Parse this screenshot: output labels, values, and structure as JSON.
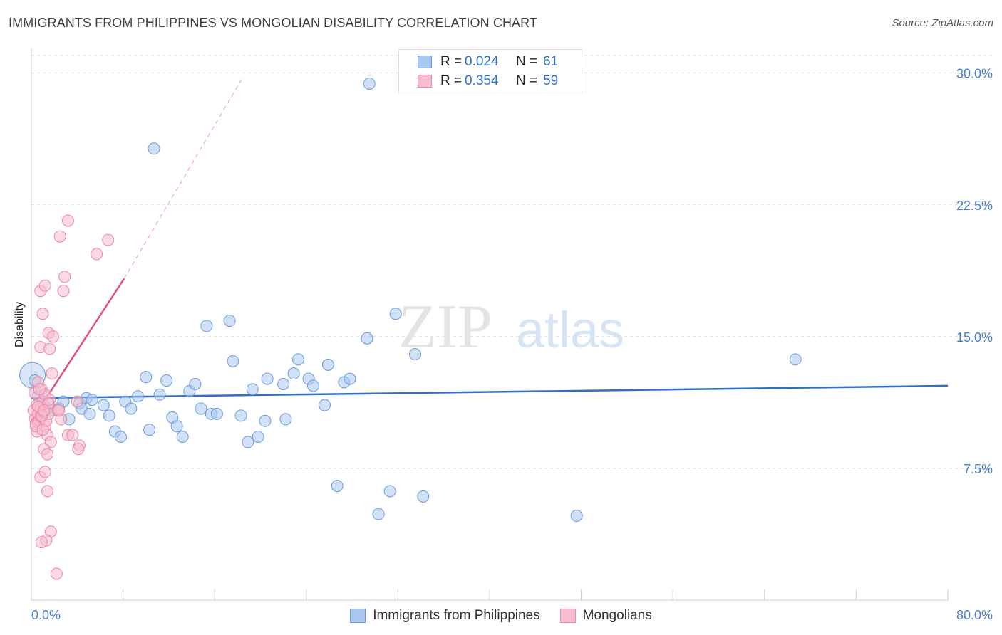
{
  "header": {
    "title": "IMMIGRANTS FROM PHILIPPINES VS MONGOLIAN DISABILITY CORRELATION CHART",
    "source": "Source: ZipAtlas.com"
  },
  "watermark": {
    "zip": "ZIP",
    "atlas": "atlas"
  },
  "legend": {
    "rows": [
      {
        "r_label": "R =",
        "r_value": "0.024",
        "n_label": "N =",
        "n_value": "61",
        "color": "#a9c8f0",
        "border": "#6c9ad8"
      },
      {
        "r_label": "R =",
        "r_value": "0.354",
        "n_label": "N =",
        "n_value": "59",
        "color": "#f8bccd",
        "border": "#e888a6"
      }
    ],
    "bottom": [
      {
        "label": "Immigrants from Philippines",
        "color": "#a9c8f0",
        "border": "#6c9ad8"
      },
      {
        "label": "Mongolians",
        "color": "#f8bccd",
        "border": "#e888a6"
      }
    ]
  },
  "chart_data": {
    "type": "scatter",
    "title": "IMMIGRANTS FROM PHILIPPINES VS MONGOLIAN DISABILITY CORRELATION CHART",
    "xlabel": "",
    "ylabel": "Disability",
    "xlim": [
      0,
      80
    ],
    "ylim": [
      0,
      31
    ],
    "x_tick_labels": [
      "0.0%",
      "80.0%"
    ],
    "y_ticks": [
      {
        "value": 7.5,
        "label": "7.5%"
      },
      {
        "value": 15.0,
        "label": "15.0%"
      },
      {
        "value": 22.5,
        "label": "22.5%"
      },
      {
        "value": 30.0,
        "label": "30.0%"
      }
    ],
    "grid": true,
    "legend_position": "top-center",
    "series": [
      {
        "name": "Immigrants from Philippines",
        "color": "#6c9ad8",
        "fill": "#a9c8f0",
        "line_color": "#2f6fc8",
        "trend": {
          "x0": 0,
          "y0": 11.5,
          "x1": 80,
          "y1": 12.2
        },
        "points": [
          [
            0.3,
            12.5
          ],
          [
            0.6,
            11.6
          ],
          [
            1.2,
            11.0
          ],
          [
            1.7,
            10.8
          ],
          [
            2.4,
            10.9
          ],
          [
            2.8,
            11.3
          ],
          [
            3.3,
            10.3
          ],
          [
            4.2,
            11.2
          ],
          [
            4.8,
            11.5
          ],
          [
            4.4,
            10.9
          ],
          [
            5.3,
            11.4
          ],
          [
            5.1,
            10.6
          ],
          [
            6.3,
            11.1
          ],
          [
            6.8,
            10.5
          ],
          [
            7.3,
            9.6
          ],
          [
            7.8,
            9.3
          ],
          [
            8.2,
            11.3
          ],
          [
            8.7,
            10.9
          ],
          [
            9.3,
            11.6
          ],
          [
            10.0,
            12.7
          ],
          [
            10.3,
            9.7
          ],
          [
            11.2,
            11.7
          ],
          [
            11.8,
            12.5
          ],
          [
            12.3,
            10.4
          ],
          [
            12.7,
            9.9
          ],
          [
            13.2,
            9.3
          ],
          [
            13.8,
            11.9
          ],
          [
            14.3,
            12.3
          ],
          [
            14.8,
            10.9
          ],
          [
            15.3,
            15.6
          ],
          [
            15.7,
            10.6
          ],
          [
            16.2,
            10.6
          ],
          [
            17.3,
            15.9
          ],
          [
            17.6,
            13.6
          ],
          [
            18.3,
            10.5
          ],
          [
            18.9,
            9.0
          ],
          [
            19.3,
            12.0
          ],
          [
            19.8,
            9.3
          ],
          [
            20.4,
            10.2
          ],
          [
            20.6,
            12.6
          ],
          [
            22.0,
            12.3
          ],
          [
            22.2,
            10.3
          ],
          [
            22.9,
            12.9
          ],
          [
            23.3,
            13.7
          ],
          [
            24.2,
            12.6
          ],
          [
            24.6,
            12.2
          ],
          [
            25.6,
            11.1
          ],
          [
            25.9,
            13.4
          ],
          [
            27.3,
            12.4
          ],
          [
            27.8,
            12.6
          ],
          [
            26.7,
            6.5
          ],
          [
            29.3,
            14.9
          ],
          [
            29.5,
            29.4
          ],
          [
            30.3,
            4.9
          ],
          [
            31.3,
            6.2
          ],
          [
            31.8,
            16.3
          ],
          [
            33.5,
            14.0
          ],
          [
            34.2,
            5.9
          ],
          [
            10.7,
            25.7
          ],
          [
            47.6,
            4.8
          ],
          [
            66.7,
            13.7
          ]
        ]
      },
      {
        "name": "Mongolians",
        "color": "#e888a6",
        "fill": "#f8bccd",
        "line_color": "#e0507e",
        "trend": {
          "x0": 0,
          "y0": 10.2,
          "x1": 8.1,
          "y1": 18.3,
          "dash_x1": 18.5,
          "dash_y1": 29.8
        },
        "points": [
          [
            0.2,
            10.8
          ],
          [
            0.3,
            10.3
          ],
          [
            0.4,
            10.0
          ],
          [
            0.5,
            9.6
          ],
          [
            0.3,
            11.8
          ],
          [
            0.6,
            10.6
          ],
          [
            0.7,
            10.2
          ],
          [
            0.5,
            11.1
          ],
          [
            0.8,
            10.9
          ],
          [
            0.9,
            10.4
          ],
          [
            1.0,
            11.3
          ],
          [
            1.1,
            10.7
          ],
          [
            0.6,
            12.4
          ],
          [
            0.9,
            12.0
          ],
          [
            1.2,
            9.9
          ],
          [
            1.3,
            10.2
          ],
          [
            1.4,
            9.4
          ],
          [
            1.5,
            10.6
          ],
          [
            1.6,
            11.4
          ],
          [
            1.7,
            9.0
          ],
          [
            1.8,
            12.9
          ],
          [
            0.8,
            14.4
          ],
          [
            1.6,
            14.3
          ],
          [
            1.5,
            15.2
          ],
          [
            1.9,
            15.0
          ],
          [
            1.0,
            16.3
          ],
          [
            0.8,
            17.6
          ],
          [
            1.2,
            17.9
          ],
          [
            2.3,
            10.8
          ],
          [
            2.6,
            10.3
          ],
          [
            1.1,
            8.6
          ],
          [
            1.4,
            8.3
          ],
          [
            0.8,
            7.0
          ],
          [
            1.2,
            7.3
          ],
          [
            1.4,
            6.2
          ],
          [
            1.7,
            3.9
          ],
          [
            1.3,
            3.4
          ],
          [
            0.9,
            3.3
          ],
          [
            2.2,
            1.5
          ],
          [
            3.2,
            9.4
          ],
          [
            3.6,
            9.4
          ],
          [
            4.2,
            8.8
          ],
          [
            4.1,
            8.6
          ],
          [
            2.5,
            20.7
          ],
          [
            2.9,
            18.4
          ],
          [
            2.8,
            17.6
          ],
          [
            3.2,
            21.6
          ],
          [
            5.7,
            19.7
          ],
          [
            6.7,
            20.5
          ],
          [
            1.2,
            11.7
          ],
          [
            0.4,
            9.9
          ],
          [
            0.6,
            11.0
          ],
          [
            0.9,
            10.5
          ],
          [
            1.0,
            9.7
          ],
          [
            4.0,
            11.3
          ],
          [
            2.4,
            10.8
          ],
          [
            1.5,
            11.2
          ],
          [
            0.7,
            12.0
          ],
          [
            1.1,
            10.8
          ]
        ]
      }
    ],
    "big_marker": {
      "series": "Immigrants from Philippines",
      "x": 0.1,
      "y": 12.8
    }
  }
}
